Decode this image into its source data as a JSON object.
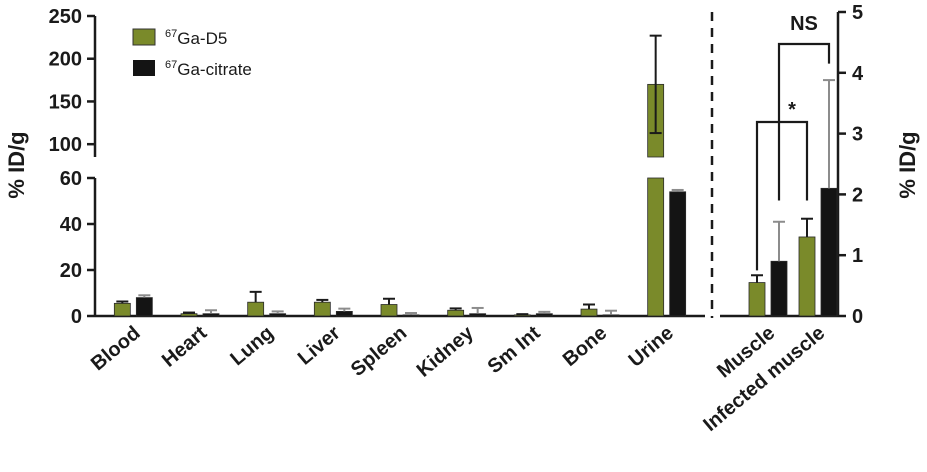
{
  "chart_data": {
    "type": "bar",
    "left_panel": {
      "categories": [
        "Blood",
        "Heart",
        "Lung",
        "Liver",
        "Spleen",
        "Kidney",
        "Sm Int",
        "Bone",
        "Urine"
      ],
      "series": [
        {
          "name_sup": "67",
          "name_text": "Ga-D5",
          "color": "#7a8a2a",
          "values": [
            5.5,
            1.0,
            6.0,
            6.0,
            5.0,
            2.5,
            0.5,
            3.0,
            170
          ],
          "errors": [
            0.8,
            0.5,
            4.5,
            1.0,
            2.5,
            0.8,
            0.3,
            2.0,
            57
          ]
        },
        {
          "name_sup": "67",
          "name_text": "Ga-citrate",
          "color": "#141414",
          "values": [
            8.0,
            1.0,
            1.0,
            2.0,
            0.5,
            1.0,
            1.0,
            0.5,
            54
          ],
          "errors": [
            1.0,
            1.5,
            1.0,
            1.2,
            0.8,
            2.5,
            0.8,
            1.8,
            0.8
          ]
        }
      ],
      "ylabel": "% ID/g",
      "y_lower_ticks": [
        "0",
        "20",
        "40",
        "60"
      ],
      "y_upper_ticks": [
        "100",
        "150",
        "200",
        "250"
      ],
      "ylim_lower": [
        0,
        60
      ],
      "ylim_upper": [
        85,
        250
      ]
    },
    "right_panel": {
      "categories": [
        "Muscle",
        "Infected muscle"
      ],
      "series": [
        {
          "values": [
            0.55,
            1.3
          ],
          "errors": [
            0.12,
            0.3
          ]
        },
        {
          "values": [
            0.9,
            2.1
          ],
          "errors": [
            0.65,
            1.78
          ]
        }
      ],
      "ylabel": "% ID/g",
      "y_ticks": [
        "0",
        "1",
        "2",
        "3",
        "4",
        "5"
      ],
      "ylim": [
        0,
        5
      ],
      "annotations": [
        {
          "label": "*",
          "from": "Muscle",
          "to": "Infected muscle"
        },
        {
          "label": "NS",
          "from": "Muscle",
          "to": "Infected muscle"
        }
      ]
    },
    "legend_position": "top-left"
  }
}
